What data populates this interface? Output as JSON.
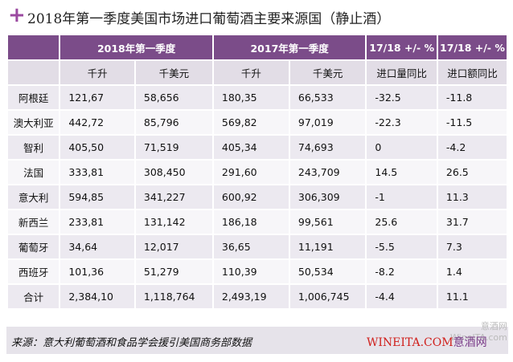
{
  "header": {
    "title": "2018年第一季度美国市场进口葡萄酒主要来源国（静止酒）"
  },
  "table": {
    "group_headers": [
      "2018年第一季度",
      "2017年第一季度",
      "17/18 +/- %",
      "17/18 +/- %"
    ],
    "sub_headers": [
      "千升",
      "千美元",
      "千升",
      "千美元",
      "进口量同比",
      "进口额同比"
    ],
    "rows": [
      [
        "阿根廷",
        "121,67",
        "58,656",
        "180,35",
        "66,533",
        "-32.5",
        "-11.8"
      ],
      [
        "澳大利亚",
        "442,72",
        "85,796",
        "569,82",
        "97,019",
        "-22.3",
        "-11.5"
      ],
      [
        "智利",
        "405,50",
        "71,519",
        "405,34",
        "74,693",
        "0",
        "-4.2"
      ],
      [
        "法国",
        "333,81",
        "308,450",
        "291,60",
        "243,709",
        "14.5",
        "26.5"
      ],
      [
        "意大利",
        "594,85",
        "341,227",
        "600,92",
        "306,309",
        "-1",
        "11.3"
      ],
      [
        "新西兰",
        "233,81",
        "131,142",
        "186,18",
        "99,561",
        "25.6",
        "31.7"
      ],
      [
        "葡萄牙",
        "34,64",
        "12,017",
        "36,65",
        "11,191",
        "-5.5",
        "7.3"
      ],
      [
        "西班牙",
        "101,36",
        "51,279",
        "110,39",
        "50,534",
        "-8.2",
        "1.4"
      ],
      [
        "合计",
        "2,384,10",
        "1,118,764",
        "2,493,19",
        "1,006,745",
        "-4.4",
        "11.1"
      ]
    ]
  },
  "footer": {
    "source": "来源：意大利葡萄酒和食品学会援引美国商务部数据",
    "watermark_site": "WINEITA.COM",
    "watermark_name": "意酒网",
    "ghost_name": "意酒网",
    "ghost_site": "WineITA.com"
  }
}
